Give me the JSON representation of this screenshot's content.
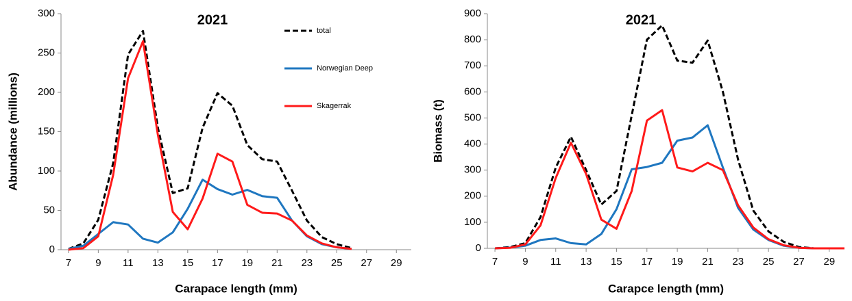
{
  "chart_data": [
    {
      "type": "line",
      "title": "2021",
      "xlabel": "Carapace length (mm)",
      "ylabel": "Abundance (millions)",
      "x": [
        7,
        8,
        9,
        10,
        11,
        12,
        13,
        14,
        15,
        16,
        17,
        18,
        19,
        20,
        21,
        22,
        23,
        24,
        25,
        26
      ],
      "series": [
        {
          "name": "total",
          "color": "#000000",
          "dashed": true,
          "values": [
            1,
            8,
            38,
            110,
            248,
            278,
            155,
            72,
            78,
            155,
            199,
            183,
            133,
            115,
            112,
            75,
            37,
            16,
            7,
            2
          ]
        },
        {
          "name": "Norwegian Deep",
          "color": "#1f77c0",
          "dashed": false,
          "values": [
            1,
            5,
            20,
            35,
            32,
            14,
            9,
            22,
            52,
            89,
            77,
            70,
            76,
            68,
            66,
            37,
            17,
            7,
            3,
            1
          ]
        },
        {
          "name": "Skagerrak",
          "color": "#ff1a1a",
          "dashed": false,
          "values": [
            0,
            2,
            17,
            95,
            218,
            265,
            146,
            48,
            26,
            65,
            122,
            112,
            57,
            47,
            46,
            37,
            18,
            8,
            3,
            1
          ]
        }
      ],
      "xlim": [
        6.5,
        30
      ],
      "xticks": [
        7,
        9,
        11,
        13,
        15,
        17,
        19,
        21,
        23,
        25,
        27,
        29
      ],
      "ylim": [
        0,
        300
      ],
      "yticks": [
        0,
        50,
        100,
        150,
        200,
        250,
        300
      ],
      "legend": true
    },
    {
      "type": "line",
      "title": "2021",
      "xlabel": "Carapce length (mm)",
      "ylabel": "Biomass (t)",
      "x": [
        7,
        8,
        9,
        10,
        11,
        12,
        13,
        14,
        15,
        16,
        17,
        18,
        19,
        20,
        21,
        22,
        23,
        24,
        25,
        26,
        27,
        28,
        29,
        30
      ],
      "series": [
        {
          "color": "#000000",
          "dashed": true,
          "values": [
            0,
            5,
            20,
            120,
            310,
            428,
            300,
            168,
            220,
            510,
            800,
            855,
            720,
            712,
            797,
            600,
            340,
            145,
            65,
            25,
            5,
            0,
            0,
            0
          ]
        },
        {
          "color": "#1f77c0",
          "dashed": false,
          "values": [
            0,
            3,
            10,
            32,
            38,
            20,
            15,
            55,
            150,
            303,
            312,
            328,
            413,
            425,
            472,
            310,
            155,
            72,
            32,
            10,
            2,
            0,
            0,
            0
          ]
        },
        {
          "color": "#ff1a1a",
          "dashed": false,
          "values": [
            0,
            2,
            15,
            88,
            270,
            405,
            285,
            110,
            75,
            220,
            490,
            530,
            310,
            295,
            328,
            300,
            165,
            80,
            35,
            12,
            2,
            0,
            0,
            0
          ]
        }
      ],
      "xlim": [
        6.5,
        30
      ],
      "xticks": [
        7,
        9,
        11,
        13,
        15,
        17,
        19,
        21,
        23,
        25,
        27,
        29
      ],
      "ylim": [
        0,
        900
      ],
      "yticks": [
        0,
        100,
        200,
        300,
        400,
        500,
        600,
        700,
        800,
        900
      ],
      "legend": false
    }
  ]
}
